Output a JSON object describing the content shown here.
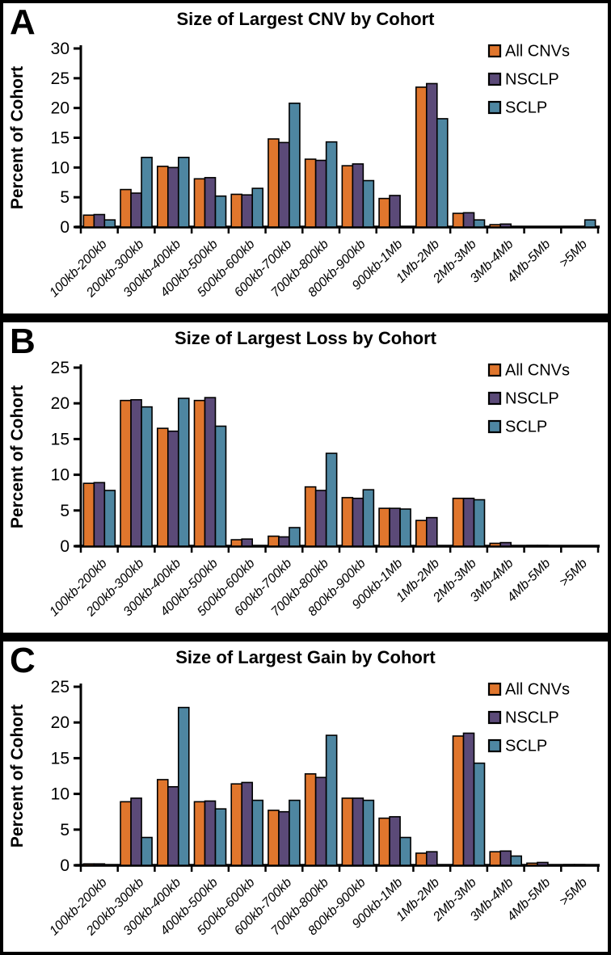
{
  "figure": {
    "background": "#FFFFFF",
    "border_color": "#000000",
    "axis_color": "#000000"
  },
  "panels": [
    {
      "letter": "A",
      "title": "Size of Largest CNV by Cohort"
    },
    {
      "letter": "B",
      "title": "Size of Largest Loss by Cohort"
    },
    {
      "letter": "C",
      "title": "Size of Largest Gain by Cohort"
    }
  ],
  "chart_data": [
    {
      "type": "bar",
      "title": "Size of Largest CNV by Cohort",
      "xlabel": "",
      "ylabel": "Percent of Cohort",
      "ylim": [
        0,
        30
      ],
      "ytick_step": 5,
      "grid": false,
      "legend_position": "top-right",
      "categories": [
        "100kb-200kb",
        "200kb-300kb",
        "300kb-400kb",
        "400kb-500kb",
        "500kb-600kb",
        "600kb-700kb",
        "700kb-800kb",
        "800kb-900kb",
        "900kb-1Mb",
        "1Mb-2Mb",
        "2Mb-3Mb",
        "3Mb-4Mb",
        "4Mb-5Mb",
        ">5Mb"
      ],
      "series": [
        {
          "name": "All CNVs",
          "color": "#E0762D",
          "values": [
            2.0,
            6.3,
            10.2,
            8.1,
            5.5,
            14.8,
            11.4,
            10.3,
            4.8,
            23.5,
            2.3,
            0.4,
            0,
            0.1
          ]
        },
        {
          "name": "NSCLP",
          "color": "#5B4A78",
          "values": [
            2.1,
            5.7,
            10.0,
            8.3,
            5.4,
            14.2,
            11.2,
            10.6,
            5.3,
            24.1,
            2.4,
            0.5,
            0,
            0.1
          ]
        },
        {
          "name": "SCLP",
          "color": "#4E86A1",
          "values": [
            1.2,
            11.7,
            11.7,
            5.2,
            6.5,
            20.8,
            14.3,
            7.8,
            0,
            18.2,
            1.2,
            0,
            0,
            1.2
          ]
        }
      ]
    },
    {
      "type": "bar",
      "title": "Size of Largest Loss by Cohort",
      "xlabel": "",
      "ylabel": "Percent of Cohort",
      "ylim": [
        0,
        25
      ],
      "ytick_step": 5,
      "grid": false,
      "legend_position": "top-right",
      "categories": [
        "100kb-200kb",
        "200kb-300kb",
        "300kb-400kb",
        "400kb-500kb",
        "500kb-600kb",
        "600kb-700kb",
        "700kb-800kb",
        "800kb-900kb",
        "900kb-1Mb",
        "1Mb-2Mb",
        "2Mb-3Mb",
        "3Mb-4Mb",
        "4Mb-5Mb",
        ">5Mb"
      ],
      "series": [
        {
          "name": "All CNVs",
          "color": "#E0762D",
          "values": [
            8.8,
            20.4,
            16.5,
            20.4,
            0.9,
            1.4,
            8.3,
            6.8,
            5.3,
            3.6,
            6.7,
            0.4,
            0.1,
            0
          ]
        },
        {
          "name": "NSCLP",
          "color": "#5B4A78",
          "values": [
            8.9,
            20.5,
            16.1,
            20.8,
            1.0,
            1.3,
            7.8,
            6.7,
            5.3,
            4.0,
            6.7,
            0.5,
            0.1,
            0
          ]
        },
        {
          "name": "SCLP",
          "color": "#4E86A1",
          "values": [
            7.8,
            19.5,
            20.7,
            16.8,
            0,
            2.6,
            13.0,
            7.9,
            5.2,
            0,
            6.5,
            0,
            0,
            0
          ]
        }
      ]
    },
    {
      "type": "bar",
      "title": "Size of Largest Gain by Cohort",
      "xlabel": "",
      "ylabel": "Percent of Cohort",
      "ylim": [
        0,
        25
      ],
      "ytick_step": 5,
      "grid": false,
      "legend_position": "top-right",
      "categories": [
        "100kb-200kb",
        "200kb-300kb",
        "300kb-400kb",
        "400kb-500kb",
        "500kb-600kb",
        "600kb-700kb",
        "700kb-800kb",
        "800kb-900kb",
        "900kb-1Mb",
        "1Mb-2Mb",
        "2Mb-3Mb",
        "3Mb-4Mb",
        "4Mb-5Mb",
        ">5Mb"
      ],
      "series": [
        {
          "name": "All CNVs",
          "color": "#E0762D",
          "values": [
            0.2,
            8.9,
            12.0,
            8.9,
            11.4,
            7.7,
            12.8,
            9.4,
            6.6,
            1.7,
            18.1,
            1.9,
            0.3,
            0.1
          ]
        },
        {
          "name": "NSCLP",
          "color": "#5B4A78",
          "values": [
            0.2,
            9.4,
            11.0,
            9.0,
            11.6,
            7.5,
            12.3,
            9.4,
            6.8,
            1.9,
            18.5,
            2.0,
            0.4,
            0.1
          ]
        },
        {
          "name": "SCLP",
          "color": "#4E86A1",
          "values": [
            0,
            3.9,
            22.1,
            7.9,
            9.1,
            9.1,
            18.2,
            9.1,
            3.9,
            0,
            14.3,
            1.3,
            0,
            0
          ]
        }
      ]
    }
  ]
}
